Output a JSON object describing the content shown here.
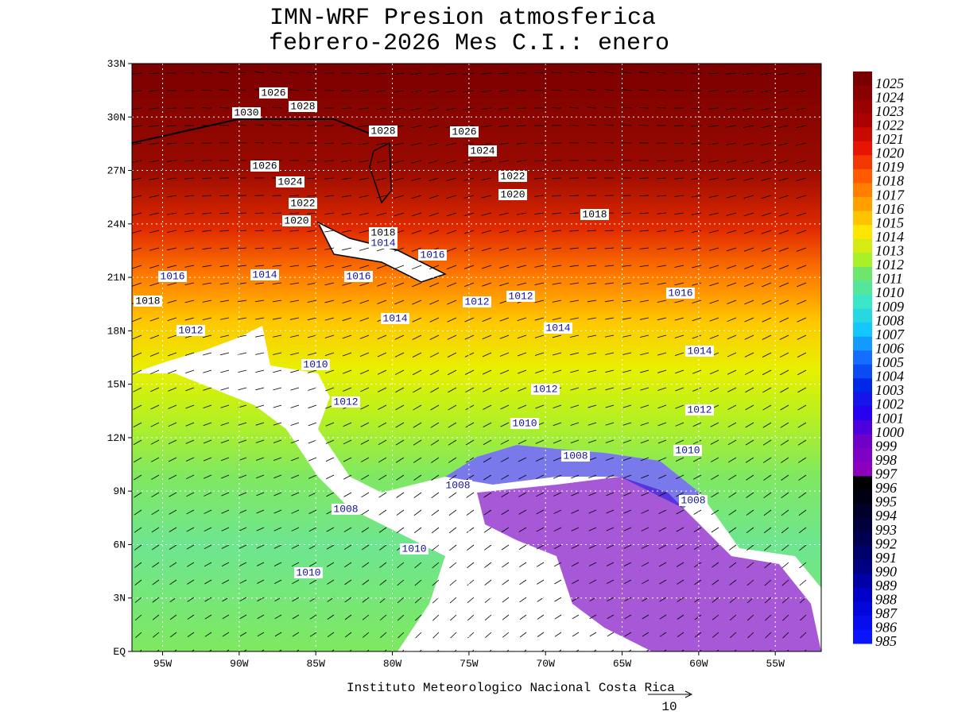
{
  "header": {
    "title": "IMN-WRF  Presion atmosferica",
    "subtitle": "febrero-2026 Mes C.I.: enero"
  },
  "map": {
    "lat_range": [
      0,
      33
    ],
    "lon_range": [
      -97,
      -52
    ],
    "lat_ticks": [
      {
        "value": 33,
        "label": "33N"
      },
      {
        "value": 30,
        "label": "30N"
      },
      {
        "value": 27,
        "label": "27N"
      },
      {
        "value": 24,
        "label": "24N"
      },
      {
        "value": 21,
        "label": "21N"
      },
      {
        "value": 18,
        "label": "18N"
      },
      {
        "value": 15,
        "label": "15N"
      },
      {
        "value": 12,
        "label": "12N"
      },
      {
        "value": 9,
        "label": "9N"
      },
      {
        "value": 6,
        "label": "6N"
      },
      {
        "value": 3,
        "label": "3N"
      },
      {
        "value": 0,
        "label": "EQ"
      }
    ],
    "lon_ticks": [
      {
        "value": -95,
        "label": "95W"
      },
      {
        "value": -90,
        "label": "90W"
      },
      {
        "value": -85,
        "label": "85W"
      },
      {
        "value": -80,
        "label": "80W"
      },
      {
        "value": -75,
        "label": "75W"
      },
      {
        "value": -70,
        "label": "70W"
      },
      {
        "value": -65,
        "label": "65W"
      },
      {
        "value": -60,
        "label": "60W"
      },
      {
        "value": -55,
        "label": "55W"
      }
    ],
    "contour_labels": [
      1026,
      1030,
      1028,
      1028,
      1026,
      1024,
      1026,
      1024,
      1022,
      1022,
      1020,
      1020,
      1018,
      1018,
      1014,
      1016,
      1016,
      1014,
      1016,
      1016,
      1018,
      1012,
      1012,
      1014,
      1014,
      1012,
      1014,
      1010,
      1012,
      1012,
      1012,
      1010,
      1008,
      1010,
      1008,
      1008,
      1008,
      1010,
      1010
    ]
  },
  "colorbar": {
    "levels": [
      1025,
      1024,
      1023,
      1022,
      1021,
      1020,
      1019,
      1018,
      1017,
      1016,
      1015,
      1014,
      1013,
      1012,
      1011,
      1010,
      1009,
      1008,
      1007,
      1006,
      1005,
      1004,
      1003,
      1002,
      1001,
      1000,
      999,
      998,
      997,
      996,
      995,
      994,
      993,
      992,
      991,
      990,
      989,
      988,
      987,
      986,
      985
    ]
  },
  "footer": {
    "credit": "Instituto Meteorologico Nacional Costa Rica",
    "vector_scale": "10"
  }
}
